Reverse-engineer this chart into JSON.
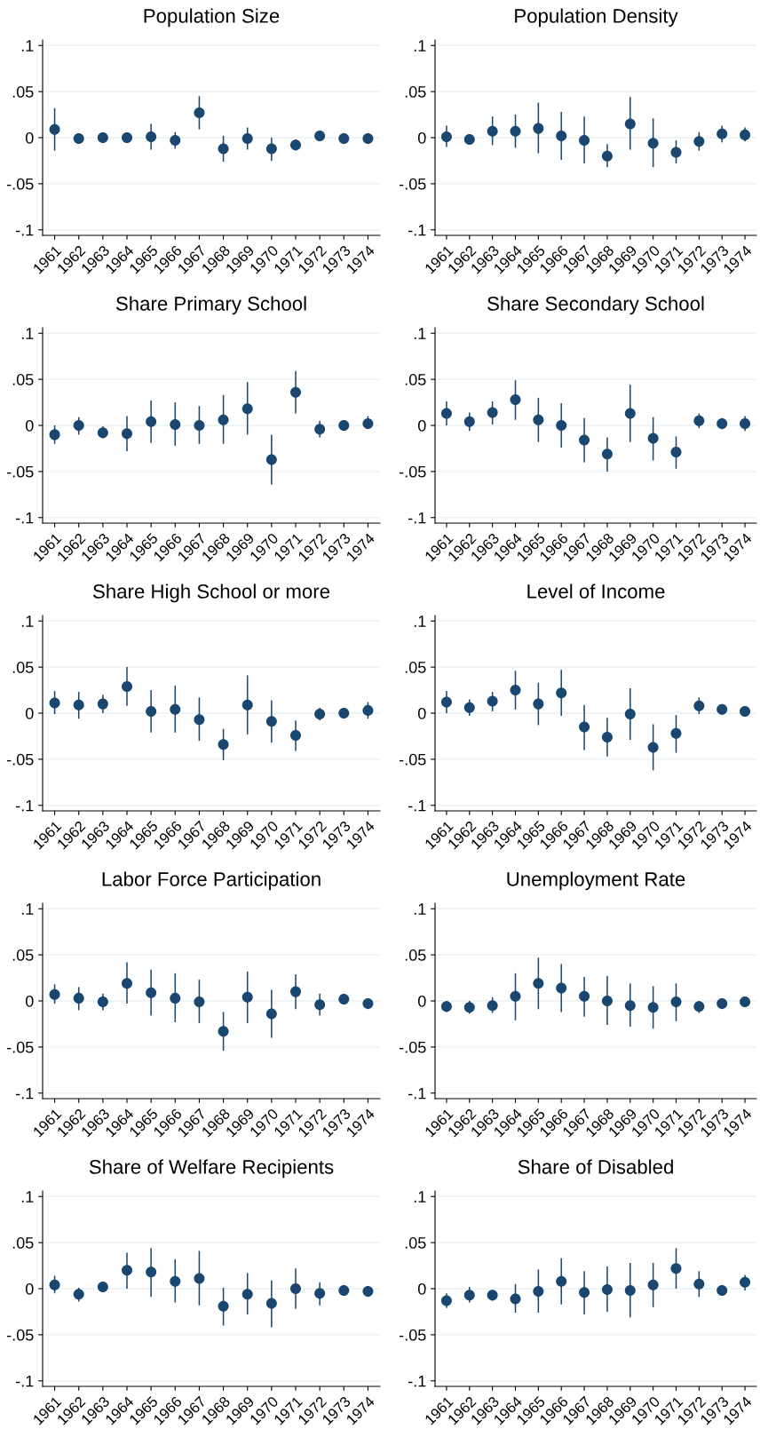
{
  "chart_data": [
    {
      "type": "scatter",
      "title": "Population Size",
      "categories": [
        "1961",
        "1962",
        "1963",
        "1964",
        "1965",
        "1966",
        "1967",
        "1968",
        "1969",
        "1970",
        "1971",
        "1972",
        "1973",
        "1974"
      ],
      "color": "#1a476f",
      "marker": "circle",
      "grid": "y",
      "ylim": [
        -0.106,
        0.106
      ],
      "yticks": [
        {
          "value": -0.1,
          "label": "-.1"
        },
        {
          "value": -0.05,
          "label": "-.05"
        },
        0,
        {
          "value": 0.05,
          "label": ".05"
        },
        {
          "value": 0.1,
          "label": ".1"
        }
      ],
      "values": [
        0.009,
        -0.001,
        0.0,
        0.0,
        0.001,
        -0.003,
        0.027,
        -0.012,
        -0.001,
        -0.012,
        -0.008,
        0.002,
        -0.001,
        -0.001
      ],
      "errors": [
        [
          -0.014,
          0.032
        ],
        [
          -0.003,
          0.001
        ],
        [
          -0.002,
          0.002
        ],
        [
          -0.003,
          0.004
        ],
        [
          -0.013,
          0.015
        ],
        [
          -0.012,
          0.006
        ],
        [
          0.009,
          0.045
        ],
        [
          -0.026,
          0.002
        ],
        [
          -0.013,
          0.011
        ],
        [
          -0.025,
          0.0
        ],
        [
          -0.014,
          -0.002
        ],
        [
          -0.002,
          0.005
        ],
        [
          -0.002,
          0.001
        ],
        [
          -0.002,
          0.0
        ]
      ]
    },
    {
      "type": "scatter",
      "title": "Population Density",
      "categories": [
        "1961",
        "1962",
        "1963",
        "1964",
        "1965",
        "1966",
        "1967",
        "1968",
        "1969",
        "1970",
        "1971",
        "1972",
        "1973",
        "1974"
      ],
      "color": "#1a476f",
      "marker": "circle",
      "grid": "y",
      "ylim": [
        -0.106,
        0.106
      ],
      "yticks": [
        {
          "value": -0.1,
          "label": "-.1"
        },
        {
          "value": -0.05,
          "label": "-.05"
        },
        0,
        {
          "value": 0.05,
          "label": ".05"
        },
        {
          "value": 0.1,
          "label": ".1"
        }
      ],
      "values": [
        0.001,
        -0.002,
        0.007,
        0.007,
        0.01,
        0.002,
        -0.003,
        -0.02,
        0.015,
        -0.006,
        -0.016,
        -0.004,
        0.004,
        0.003
      ],
      "errors": [
        [
          -0.01,
          0.013
        ],
        [
          -0.006,
          0.003
        ],
        [
          -0.008,
          0.023
        ],
        [
          -0.011,
          0.025
        ],
        [
          -0.017,
          0.038
        ],
        [
          -0.024,
          0.028
        ],
        [
          -0.028,
          0.023
        ],
        [
          -0.032,
          -0.007
        ],
        [
          -0.013,
          0.044
        ],
        [
          -0.032,
          0.021
        ],
        [
          -0.028,
          -0.003
        ],
        [
          -0.014,
          0.006
        ],
        [
          -0.005,
          0.013
        ],
        [
          -0.004,
          0.011
        ]
      ]
    },
    {
      "type": "scatter",
      "title": "Share Primary School",
      "categories": [
        "1961",
        "1962",
        "1963",
        "1964",
        "1965",
        "1966",
        "1967",
        "1968",
        "1969",
        "1970",
        "1971",
        "1972",
        "1973",
        "1974"
      ],
      "color": "#1a476f",
      "marker": "circle",
      "grid": "y",
      "ylim": [
        -0.106,
        0.106
      ],
      "yticks": [
        {
          "value": -0.1,
          "label": "-.1"
        },
        {
          "value": -0.05,
          "label": "-.05"
        },
        0,
        {
          "value": 0.05,
          "label": ".05"
        },
        {
          "value": 0.1,
          "label": ".1"
        }
      ],
      "values": [
        -0.01,
        0.0,
        -0.008,
        -0.009,
        0.004,
        0.001,
        0.0,
        0.006,
        0.018,
        -0.037,
        0.036,
        -0.004,
        0.0,
        0.002
      ],
      "errors": [
        [
          -0.02,
          0.0
        ],
        [
          -0.01,
          0.009
        ],
        [
          -0.014,
          -0.001
        ],
        [
          -0.028,
          0.01
        ],
        [
          -0.019,
          0.027
        ],
        [
          -0.022,
          0.025
        ],
        [
          -0.02,
          0.021
        ],
        [
          -0.02,
          0.033
        ],
        [
          -0.01,
          0.047
        ],
        [
          -0.064,
          -0.01
        ],
        [
          0.013,
          0.059
        ],
        [
          -0.013,
          0.005
        ],
        [
          -0.002,
          0.002
        ],
        [
          -0.004,
          0.01
        ]
      ]
    },
    {
      "type": "scatter",
      "title": "Share Secondary School",
      "categories": [
        "1961",
        "1962",
        "1963",
        "1964",
        "1965",
        "1966",
        "1967",
        "1968",
        "1969",
        "1970",
        "1971",
        "1972",
        "1973",
        "1974"
      ],
      "color": "#1a476f",
      "marker": "circle",
      "grid": "y",
      "ylim": [
        -0.106,
        0.106
      ],
      "yticks": [
        {
          "value": -0.1,
          "label": "-.1"
        },
        {
          "value": -0.05,
          "label": "-.05"
        },
        0,
        {
          "value": 0.05,
          "label": ".05"
        },
        {
          "value": 0.1,
          "label": ".1"
        }
      ],
      "values": [
        0.013,
        0.004,
        0.014,
        0.028,
        0.006,
        0.0,
        -0.016,
        -0.031,
        0.013,
        -0.014,
        -0.029,
        0.005,
        0.002,
        0.002
      ],
      "errors": [
        [
          0.0,
          0.026
        ],
        [
          -0.006,
          0.014
        ],
        [
          0.001,
          0.026
        ],
        [
          0.006,
          0.049
        ],
        [
          -0.018,
          0.03
        ],
        [
          -0.024,
          0.024
        ],
        [
          -0.04,
          0.008
        ],
        [
          -0.05,
          -0.013
        ],
        [
          -0.018,
          0.044
        ],
        [
          -0.038,
          0.009
        ],
        [
          -0.047,
          -0.012
        ],
        [
          -0.003,
          0.013
        ],
        [
          -0.004,
          0.008
        ],
        [
          -0.006,
          0.01
        ]
      ]
    },
    {
      "type": "scatter",
      "title": "Share High School or more",
      "categories": [
        "1961",
        "1962",
        "1963",
        "1964",
        "1965",
        "1966",
        "1967",
        "1968",
        "1969",
        "1970",
        "1971",
        "1972",
        "1973",
        "1974"
      ],
      "color": "#1a476f",
      "marker": "circle",
      "grid": "y",
      "ylim": [
        -0.106,
        0.106
      ],
      "yticks": [
        {
          "value": -0.1,
          "label": "-.1"
        },
        {
          "value": -0.05,
          "label": "-.05"
        },
        0,
        {
          "value": 0.05,
          "label": ".05"
        },
        {
          "value": 0.1,
          "label": ".1"
        }
      ],
      "values": [
        0.011,
        0.009,
        0.01,
        0.029,
        0.002,
        0.004,
        -0.007,
        -0.034,
        0.009,
        -0.009,
        -0.024,
        -0.001,
        0.0,
        0.003
      ],
      "errors": [
        [
          -0.001,
          0.024
        ],
        [
          -0.006,
          0.023
        ],
        [
          0.0,
          0.02
        ],
        [
          0.008,
          0.05
        ],
        [
          -0.021,
          0.025
        ],
        [
          -0.021,
          0.03
        ],
        [
          -0.03,
          0.017
        ],
        [
          -0.051,
          -0.017
        ],
        [
          -0.023,
          0.041
        ],
        [
          -0.032,
          0.014
        ],
        [
          -0.041,
          -0.008
        ],
        [
          -0.008,
          0.006
        ],
        [
          -0.002,
          0.002
        ],
        [
          -0.006,
          0.012
        ]
      ]
    },
    {
      "type": "scatter",
      "title": "Level of Income",
      "categories": [
        "1961",
        "1962",
        "1963",
        "1964",
        "1965",
        "1966",
        "1967",
        "1968",
        "1969",
        "1970",
        "1971",
        "1972",
        "1973",
        "1974"
      ],
      "color": "#1a476f",
      "marker": "circle",
      "grid": "y",
      "ylim": [
        -0.106,
        0.106
      ],
      "yticks": [
        {
          "value": -0.1,
          "label": "-.1"
        },
        {
          "value": -0.05,
          "label": "-.05"
        },
        0,
        {
          "value": 0.05,
          "label": ".05"
        },
        {
          "value": 0.1,
          "label": ".1"
        }
      ],
      "values": [
        0.012,
        0.006,
        0.013,
        0.025,
        0.01,
        0.022,
        -0.015,
        -0.026,
        -0.001,
        -0.037,
        -0.022,
        0.008,
        0.004,
        0.002
      ],
      "errors": [
        [
          0.0,
          0.024
        ],
        [
          -0.003,
          0.015
        ],
        [
          0.002,
          0.023
        ],
        [
          0.004,
          0.046
        ],
        [
          -0.013,
          0.033
        ],
        [
          -0.003,
          0.047
        ],
        [
          -0.04,
          0.009
        ],
        [
          -0.047,
          -0.005
        ],
        [
          -0.029,
          0.027
        ],
        [
          -0.062,
          -0.012
        ],
        [
          -0.043,
          -0.002
        ],
        [
          -0.001,
          0.017
        ],
        [
          0.001,
          0.007
        ],
        [
          -0.002,
          0.006
        ]
      ]
    },
    {
      "type": "scatter",
      "title": "Labor Force Participation",
      "categories": [
        "1961",
        "1962",
        "1963",
        "1964",
        "1965",
        "1966",
        "1967",
        "1968",
        "1969",
        "1970",
        "1971",
        "1972",
        "1973",
        "1974"
      ],
      "color": "#1a476f",
      "marker": "circle",
      "grid": "y",
      "ylim": [
        -0.106,
        0.106
      ],
      "yticks": [
        {
          "value": -0.1,
          "label": "-.1"
        },
        {
          "value": -0.05,
          "label": "-.05"
        },
        0,
        {
          "value": 0.05,
          "label": ".05"
        },
        {
          "value": 0.1,
          "label": ".1"
        }
      ],
      "values": [
        0.007,
        0.003,
        -0.001,
        0.019,
        0.009,
        0.003,
        -0.001,
        -0.033,
        0.004,
        -0.014,
        0.01,
        -0.004,
        0.002,
        -0.003
      ],
      "errors": [
        [
          -0.003,
          0.018
        ],
        [
          -0.01,
          0.015
        ],
        [
          -0.01,
          0.008
        ],
        [
          -0.003,
          0.042
        ],
        [
          -0.016,
          0.034
        ],
        [
          -0.023,
          0.03
        ],
        [
          -0.024,
          0.023
        ],
        [
          -0.054,
          -0.012
        ],
        [
          -0.024,
          0.032
        ],
        [
          -0.04,
          0.012
        ],
        [
          -0.009,
          0.029
        ],
        [
          -0.016,
          0.008
        ],
        null,
        null
      ]
    },
    {
      "type": "scatter",
      "title": "Unemployment Rate",
      "categories": [
        "1961",
        "1962",
        "1963",
        "1964",
        "1965",
        "1966",
        "1967",
        "1968",
        "1969",
        "1970",
        "1971",
        "1972",
        "1973",
        "1974"
      ],
      "color": "#1a476f",
      "marker": "circle",
      "grid": "y",
      "ylim": [
        -0.106,
        0.106
      ],
      "yticks": [
        {
          "value": -0.1,
          "label": "-.1"
        },
        {
          "value": -0.05,
          "label": "-.05"
        },
        0,
        {
          "value": 0.05,
          "label": ".05"
        },
        {
          "value": 0.1,
          "label": ".1"
        }
      ],
      "values": [
        -0.006,
        -0.007,
        -0.005,
        0.005,
        0.019,
        0.014,
        0.005,
        0.0,
        -0.005,
        -0.007,
        -0.001,
        -0.006,
        -0.003,
        -0.001
      ],
      "errors": [
        [
          -0.012,
          0.0
        ],
        [
          -0.014,
          0.0
        ],
        [
          -0.013,
          0.004
        ],
        [
          -0.021,
          0.03
        ],
        [
          -0.009,
          0.047
        ],
        [
          -0.012,
          0.04
        ],
        [
          -0.017,
          0.026
        ],
        [
          -0.026,
          0.027
        ],
        [
          -0.028,
          0.019
        ],
        [
          -0.03,
          0.016
        ],
        [
          -0.022,
          0.019
        ],
        [
          -0.013,
          0.0
        ],
        [
          -0.005,
          -0.001
        ],
        [
          -0.003,
          0.001
        ]
      ]
    },
    {
      "type": "scatter",
      "title": "Share of Welfare Recipients",
      "categories": [
        "1961",
        "1962",
        "1963",
        "1964",
        "1965",
        "1966",
        "1967",
        "1968",
        "1969",
        "1970",
        "1971",
        "1972",
        "1973",
        "1974"
      ],
      "color": "#1a476f",
      "marker": "circle",
      "grid": "y",
      "ylim": [
        -0.106,
        0.106
      ],
      "yticks": [
        {
          "value": -0.1,
          "label": "-.1"
        },
        {
          "value": -0.05,
          "label": "-.05"
        },
        0,
        {
          "value": 0.05,
          "label": ".05"
        },
        {
          "value": 0.1,
          "label": ".1"
        }
      ],
      "values": [
        0.004,
        -0.006,
        0.002,
        0.02,
        0.018,
        0.008,
        0.011,
        -0.019,
        -0.006,
        -0.016,
        0.0,
        -0.005,
        -0.002,
        -0.003
      ],
      "errors": [
        [
          -0.005,
          0.014
        ],
        [
          -0.014,
          0.001
        ],
        [
          -0.001,
          0.004
        ],
        [
          0.0,
          0.039
        ],
        [
          -0.009,
          0.044
        ],
        [
          -0.015,
          0.032
        ],
        [
          -0.018,
          0.041
        ],
        [
          -0.04,
          0.001
        ],
        [
          -0.028,
          0.017
        ],
        [
          -0.042,
          0.009
        ],
        [
          -0.022,
          0.022
        ],
        [
          -0.018,
          0.007
        ],
        null,
        null
      ]
    },
    {
      "type": "scatter",
      "title": "Share of Disabled",
      "categories": [
        "1961",
        "1962",
        "1963",
        "1964",
        "1965",
        "1966",
        "1967",
        "1968",
        "1969",
        "1970",
        "1971",
        "1972",
        "1973",
        "1974"
      ],
      "color": "#1a476f",
      "marker": "circle",
      "grid": "y",
      "ylim": [
        -0.106,
        0.106
      ],
      "yticks": [
        {
          "value": -0.1,
          "label": "-.1"
        },
        {
          "value": -0.05,
          "label": "-.05"
        },
        0,
        {
          "value": 0.05,
          "label": ".05"
        },
        {
          "value": 0.1,
          "label": ".1"
        }
      ],
      "values": [
        -0.013,
        -0.007,
        -0.007,
        -0.011,
        -0.003,
        0.008,
        -0.004,
        -0.001,
        -0.002,
        0.004,
        0.022,
        0.005,
        -0.002,
        0.007
      ],
      "errors": [
        [
          -0.021,
          -0.005
        ],
        [
          -0.015,
          0.002
        ],
        [
          -0.013,
          -0.002
        ],
        [
          -0.026,
          0.005
        ],
        [
          -0.026,
          0.021
        ],
        [
          -0.017,
          0.033
        ],
        [
          -0.028,
          0.019
        ],
        [
          -0.025,
          0.024
        ],
        [
          -0.031,
          0.028
        ],
        [
          -0.02,
          0.028
        ],
        [
          0.0,
          0.044
        ],
        [
          -0.009,
          0.019
        ],
        [
          -0.004,
          0.0
        ],
        [
          -0.002,
          0.015
        ]
      ]
    }
  ]
}
